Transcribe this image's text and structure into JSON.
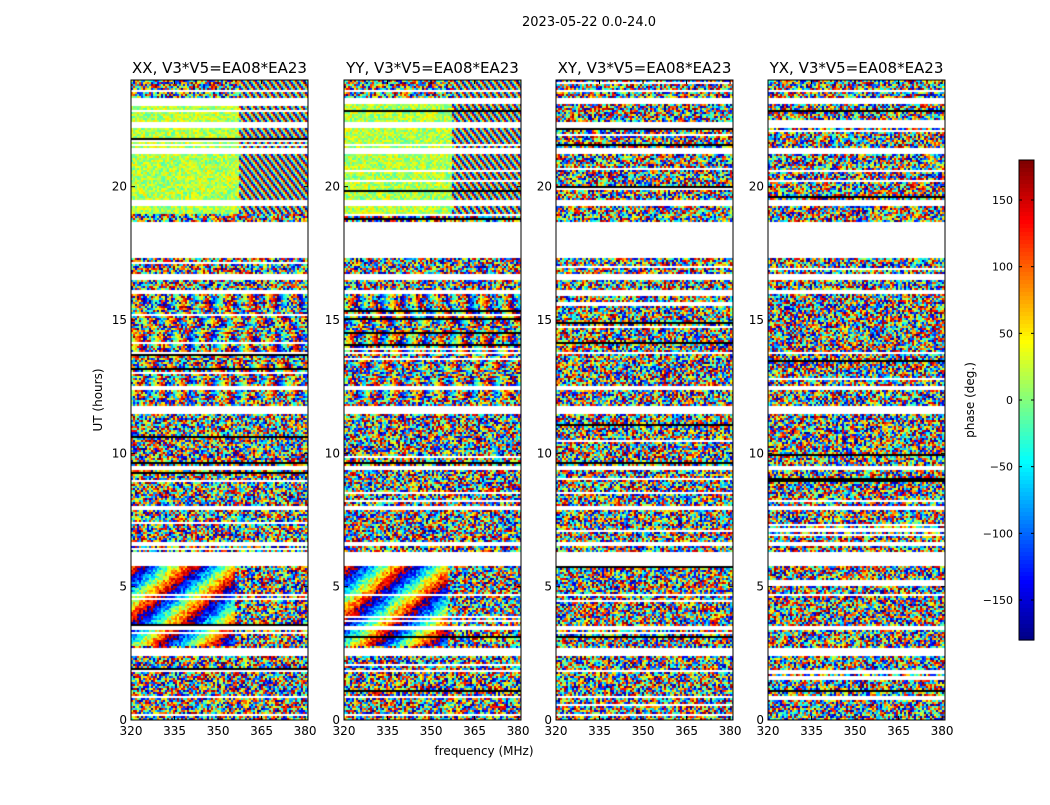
{
  "figure": {
    "title": "2023-05-22 0.0-24.0"
  },
  "chart_data": [
    {
      "type": "heatmap",
      "title": "XX, V3*V5=EA08*EA23",
      "xlabel": "frequency (MHz)",
      "ylabel": "UT (hours)",
      "xlim": [
        320,
        381
      ],
      "ylim": [
        0,
        24
      ],
      "xticks": [
        "320",
        "335",
        "350",
        "365",
        "380"
      ],
      "yticks": [
        "0",
        "5",
        "10",
        "15",
        "20"
      ],
      "pattern": "coherent"
    },
    {
      "type": "heatmap",
      "title": "YY, V3*V5=EA08*EA23",
      "xlabel": "",
      "ylabel": "",
      "xlim": [
        320,
        381
      ],
      "ylim": [
        0,
        24
      ],
      "xticks": [
        "320",
        "335",
        "350",
        "365",
        "380"
      ],
      "yticks": [
        "0",
        "5",
        "10",
        "15",
        "20"
      ],
      "pattern": "coherent"
    },
    {
      "type": "heatmap",
      "title": "XY, V3*V5=EA08*EA23",
      "xlabel": "",
      "ylabel": "",
      "xlim": [
        320,
        381
      ],
      "ylim": [
        0,
        24
      ],
      "xticks": [
        "320",
        "335",
        "350",
        "365",
        "380"
      ],
      "yticks": [
        "0",
        "5",
        "10",
        "15",
        "20"
      ],
      "pattern": "noise"
    },
    {
      "type": "heatmap",
      "title": "YX, V3*V5=EA08*EA23",
      "xlabel": "",
      "ylabel": "",
      "xlim": [
        320,
        381
      ],
      "ylim": [
        0,
        24
      ],
      "xticks": [
        "320",
        "335",
        "350",
        "365",
        "380"
      ],
      "yticks": [
        "0",
        "5",
        "10",
        "15",
        "20"
      ],
      "pattern": "noise"
    }
  ],
  "colorbar": {
    "label": "phase (deg.)",
    "range": [
      -180,
      180
    ],
    "ticks": [
      "150",
      "100",
      "50",
      "0",
      "−50",
      "−100",
      "−150"
    ],
    "tick_values": [
      150,
      100,
      50,
      0,
      -50,
      -100,
      -150
    ],
    "colormap": "jet"
  },
  "data_gaps_hours": [
    [
      0.85,
      0.95
    ],
    [
      1.85,
      1.95
    ],
    [
      2.45,
      2.75
    ],
    [
      3.45,
      3.55
    ],
    [
      4.65,
      4.75
    ],
    [
      5.85,
      6.35
    ],
    [
      6.55,
      6.75
    ],
    [
      7.95,
      8.05
    ],
    [
      9.45,
      9.55
    ],
    [
      11.5,
      11.85
    ],
    [
      12.45,
      12.55
    ],
    [
      13.75,
      13.85
    ],
    [
      16.05,
      16.15
    ],
    [
      16.55,
      16.75
    ],
    [
      17.35,
      18.75
    ],
    [
      19.35,
      19.55
    ],
    [
      21.3,
      21.5
    ],
    [
      22.25,
      22.45
    ],
    [
      23.15,
      23.35
    ],
    [
      23.6,
      23.7
    ]
  ]
}
